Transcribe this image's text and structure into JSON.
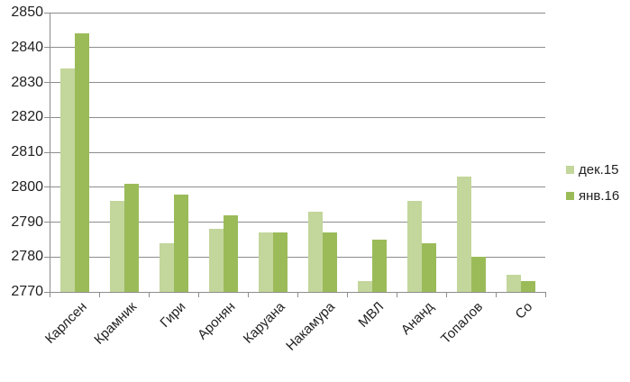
{
  "chart_data": {
    "type": "bar",
    "title": "",
    "xlabel": "",
    "ylabel": "",
    "categories": [
      "Карлсен",
      "Крамник",
      "Гири",
      "Аронян",
      "Каруана",
      "Накамура",
      "МВЛ",
      "Ананд",
      "Топалов",
      "Со"
    ],
    "series": [
      {
        "name": "дек.15",
        "color": "#c3d69b",
        "values": [
          2834,
          2796,
          2784,
          2788,
          2787,
          2793,
          2773,
          2796,
          2803,
          2775
        ]
      },
      {
        "name": "янв.16",
        "color": "#9bbb59",
        "values": [
          2844,
          2801,
          2798,
          2792,
          2787,
          2787,
          2785,
          2784,
          2780,
          2773
        ]
      }
    ],
    "ylim": [
      2770,
      2850
    ],
    "yticks": [
      2770,
      2780,
      2790,
      2800,
      2810,
      2820,
      2830,
      2840,
      2850
    ],
    "grid": true,
    "legend_position": "right",
    "colors": {
      "background": "#ffffff",
      "gridline": "#8d8d8d",
      "axis": "#8d8d8d",
      "text": "#1f1f1f"
    }
  }
}
